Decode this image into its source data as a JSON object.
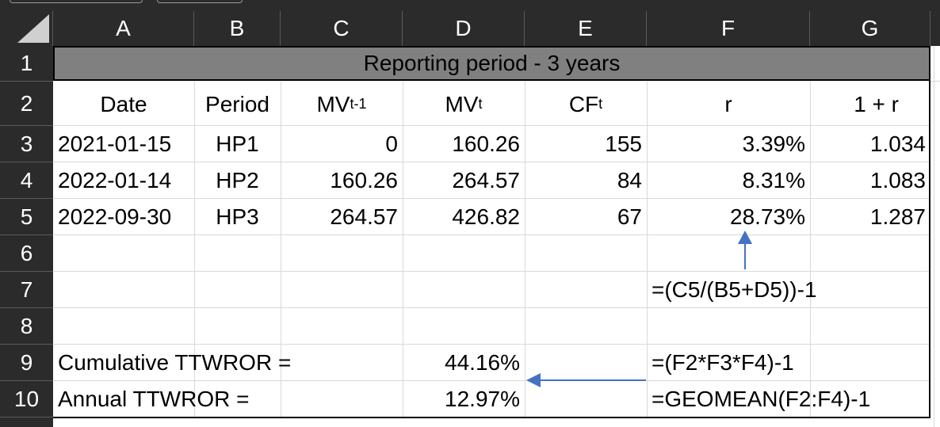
{
  "columns": [
    "A",
    "B",
    "C",
    "D",
    "E",
    "F",
    "G"
  ],
  "rows": [
    "1",
    "2",
    "3",
    "4",
    "5",
    "6",
    "7",
    "8",
    "9",
    "10"
  ],
  "title": "Reporting period - 3 years",
  "headers": {
    "date": "Date",
    "period": "Period",
    "mv_prev_base": "MV",
    "mv_prev_sub": "t-1",
    "mv_base": "MV",
    "mv_sub": "t",
    "cf_base": "CF",
    "cf_sub": "t",
    "r": "r",
    "one_plus_r": "1 + r"
  },
  "table": [
    {
      "date": "2021-01-15",
      "period": "HP1",
      "mv_prev": "0",
      "mv": "160.26",
      "cf": "155",
      "r": "3.39%",
      "one_plus_r": "1.034"
    },
    {
      "date": "2022-01-14",
      "period": "HP2",
      "mv_prev": "160.26",
      "mv": "264.57",
      "cf": "84",
      "r": "8.31%",
      "one_plus_r": "1.083"
    },
    {
      "date": "2022-09-30",
      "period": "HP3",
      "mv_prev": "264.57",
      "mv": "426.82",
      "cf": "67",
      "r": "28.73%",
      "one_plus_r": "1.287"
    }
  ],
  "formula_r": "=(C5/(B5+D5))-1",
  "cumulative_label": "Cumulative TTWROR =",
  "cumulative_value": "44.16%",
  "annual_label": "Annual TTWROR =",
  "annual_value": "12.97%",
  "formula_cumulative": "=(F2*F3*F4)-1",
  "formula_annual": "=GEOMEAN(F2:F4)-1",
  "colors": {
    "header_bg": "#2b2b2b",
    "title_bg": "#808080",
    "arrow": "#4472c4",
    "grid": "#d9d9d9"
  }
}
